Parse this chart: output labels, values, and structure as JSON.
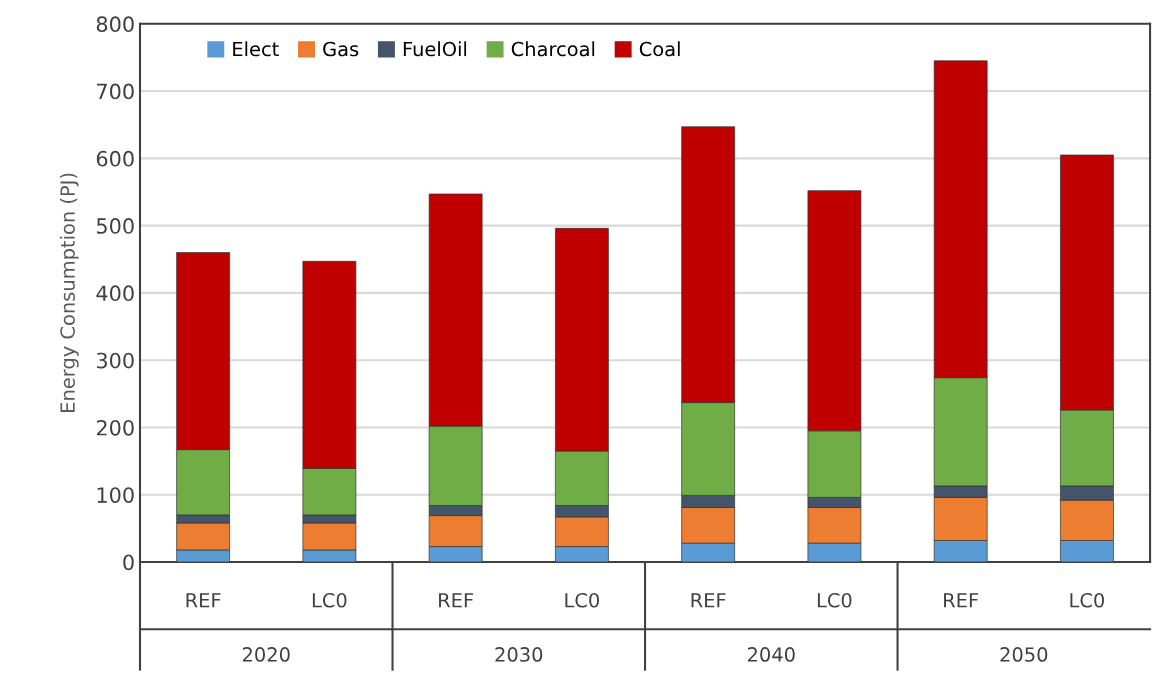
{
  "chart_data": {
    "type": "bar",
    "stacked": true,
    "ylabel": "Energy Consumption (PJ)",
    "categories": [
      "REF",
      "LC0",
      "REF",
      "LC0",
      "REF",
      "LC0",
      "REF",
      "LC0"
    ],
    "annotations": [
      "2020",
      "2030",
      "2040",
      "2050"
    ],
    "series": [
      {
        "name": "Elect",
        "color": "#5b9bd5",
        "values": [
          18,
          18,
          23,
          23,
          28,
          28,
          32,
          32
        ]
      },
      {
        "name": "Gas",
        "color": "#ed7d31",
        "values": [
          40,
          40,
          46,
          44,
          53,
          53,
          64,
          60
        ]
      },
      {
        "name": "FuelOil",
        "color": "#44546a",
        "values": [
          12,
          12,
          15,
          17,
          18,
          15,
          17,
          21
        ]
      },
      {
        "name": "Charcoal",
        "color": "#70ad47",
        "values": [
          97,
          69,
          118,
          81,
          138,
          99,
          161,
          113
        ]
      },
      {
        "name": "Coal",
        "color": "#c00000",
        "values": [
          293,
          308,
          345,
          331,
          410,
          357,
          471,
          379
        ]
      }
    ],
    "ylim": [
      0,
      800
    ],
    "yticks": [
      0,
      100,
      200,
      300,
      400,
      500,
      600,
      700,
      800
    ],
    "grid": "y",
    "legend": "top left"
  }
}
